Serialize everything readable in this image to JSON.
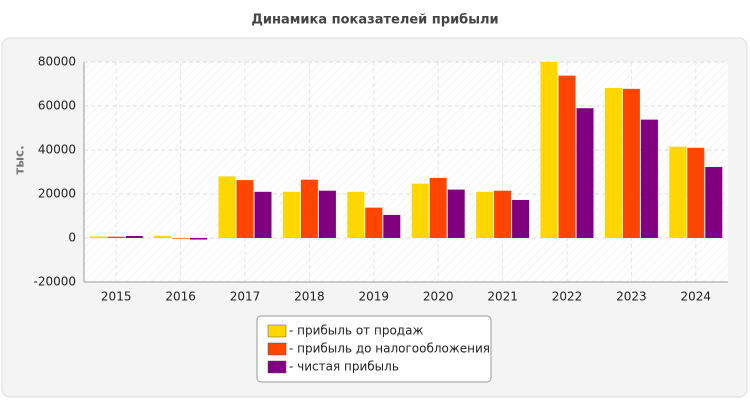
{
  "chart_data": {
    "type": "bar",
    "title": "Динамика показателей прибыли",
    "y_label": "тыс.",
    "categories": [
      "2015",
      "2016",
      "2017",
      "2018",
      "2019",
      "2020",
      "2021",
      "2022",
      "2023",
      "2024"
    ],
    "series": [
      {
        "name": "- прибыль от продаж",
        "color": "#ffd700",
        "values": [
          700,
          1000,
          28000,
          21000,
          21000,
          24700,
          21000,
          80000,
          68200,
          41500
        ]
      },
      {
        "name": "- прибыль до налогообложения",
        "color": "#ff4500",
        "values": [
          600,
          -300,
          26300,
          26500,
          13800,
          27300,
          21500,
          73800,
          67800,
          41000
        ]
      },
      {
        "name": "- чистая прибыль",
        "color": "#800080",
        "values": [
          900,
          -700,
          21000,
          21500,
          10500,
          22000,
          17300,
          59000,
          53800,
          32300
        ]
      }
    ],
    "ylim": [
      -20000,
      80000
    ],
    "yticks": [
      -20000,
      0,
      20000,
      40000,
      60000,
      80000
    ],
    "grid": true,
    "legend": "bottom"
  }
}
